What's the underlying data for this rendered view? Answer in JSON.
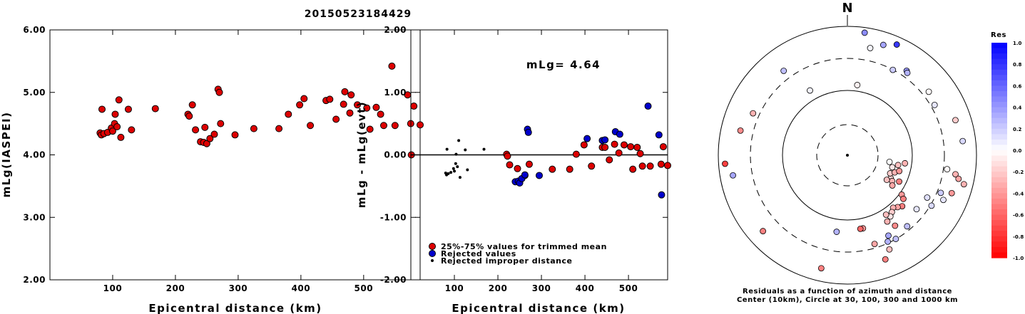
{
  "title": "20150523184429",
  "chart_data": [
    {
      "type": "scatter",
      "xlabel": "Epicentral distance (km)",
      "ylabel": "mLg(IASPEI)",
      "xlim": [
        0,
        590
      ],
      "ylim": [
        2.0,
        6.0
      ],
      "x_ticks": [
        "100",
        "200",
        "300",
        "400",
        "500"
      ],
      "x_tick_values": [
        100,
        200,
        300,
        400,
        500
      ],
      "y_ticks": [
        "2.00",
        "3.00",
        "4.00",
        "5.00",
        "6.00"
      ],
      "y_tick_values": [
        2.0,
        3.0,
        4.0,
        5.0,
        6.0
      ],
      "series": [
        {
          "color": "#dd0000",
          "points": [
            [
              80,
              4.35
            ],
            [
              82,
              4.32
            ],
            [
              83,
              4.73
            ],
            [
              86,
              4.34
            ],
            [
              92,
              4.36
            ],
            [
              98,
              4.43
            ],
            [
              100,
              4.38
            ],
            [
              103,
              4.5
            ],
            [
              104,
              4.65
            ],
            [
              107,
              4.45
            ],
            [
              110,
              4.88
            ],
            [
              113,
              4.28
            ],
            [
              125,
              4.73
            ],
            [
              130,
              4.4
            ],
            [
              168,
              4.74
            ],
            [
              220,
              4.65
            ],
            [
              222,
              4.62
            ],
            [
              227,
              4.8
            ],
            [
              232,
              4.4
            ],
            [
              240,
              4.21
            ],
            [
              245,
              4.2
            ],
            [
              247,
              4.44
            ],
            [
              250,
              4.18
            ],
            [
              255,
              4.26
            ],
            [
              262,
              4.33
            ],
            [
              268,
              5.05
            ],
            [
              270,
              5.0
            ],
            [
              272,
              4.5
            ],
            [
              295,
              4.32
            ],
            [
              325,
              4.42
            ],
            [
              365,
              4.42
            ],
            [
              380,
              4.65
            ],
            [
              398,
              4.8
            ],
            [
              405,
              4.9
            ],
            [
              415,
              4.47
            ],
            [
              440,
              4.87
            ],
            [
              446,
              4.89
            ],
            [
              456,
              4.57
            ],
            [
              468,
              4.81
            ],
            [
              470,
              5.01
            ],
            [
              478,
              4.67
            ],
            [
              480,
              4.96
            ],
            [
              490,
              4.8
            ],
            [
              505,
              4.75
            ],
            [
              510,
              4.41
            ],
            [
              520,
              4.76
            ],
            [
              527,
              4.65
            ],
            [
              532,
              4.47
            ],
            [
              545,
              5.42
            ],
            [
              550,
              4.47
            ],
            [
              570,
              4.96
            ],
            [
              575,
              4.5
            ],
            [
              576,
              4.0
            ],
            [
              580,
              4.78
            ],
            [
              590,
              4.48
            ]
          ]
        }
      ]
    },
    {
      "type": "scatter",
      "xlabel": "Epicentral distance (km)",
      "ylabel": "mLg - mLg(evt)",
      "xlim": [
        0,
        590
      ],
      "ylim": [
        -2.0,
        2.0
      ],
      "x_ticks": [
        "100",
        "200",
        "300",
        "400",
        "500"
      ],
      "x_tick_values": [
        100,
        200,
        300,
        400,
        500
      ],
      "y_ticks": [
        "-2.00",
        "-1.00",
        "0.00",
        "1.00",
        "2.00"
      ],
      "y_tick_values": [
        -2.0,
        -1.0,
        0.0,
        1.0,
        2.0
      ],
      "annotation": "mLg= 4.64",
      "reference_line": 0.0,
      "legend": [
        {
          "label": "25%-75% values for trimmed mean",
          "color": "#dd0000",
          "marker": "circle"
        },
        {
          "label": "Rejected values",
          "color": "#0000cc",
          "marker": "circle"
        },
        {
          "label": "Rejected improper distance",
          "color": "#000000",
          "marker": "dot"
        }
      ],
      "series": [
        {
          "name": "25%-75% values for trimmed mean",
          "color": "#dd0000",
          "points": [
            [
              220,
              0.01
            ],
            [
              222,
              -0.02
            ],
            [
              227,
              -0.16
            ],
            [
              245,
              -0.22
            ],
            [
              262,
              -0.33
            ],
            [
              272,
              -0.15
            ],
            [
              325,
              -0.23
            ],
            [
              365,
              -0.23
            ],
            [
              380,
              0.01
            ],
            [
              398,
              0.16
            ],
            [
              415,
              -0.18
            ],
            [
              440,
              0.12
            ],
            [
              446,
              0.12
            ],
            [
              456,
              -0.08
            ],
            [
              468,
              0.17
            ],
            [
              478,
              0.03
            ],
            [
              490,
              0.16
            ],
            [
              505,
              0.13
            ],
            [
              510,
              -0.23
            ],
            [
              520,
              0.12
            ],
            [
              527,
              0.02
            ],
            [
              532,
              -0.18
            ],
            [
              550,
              -0.18
            ],
            [
              575,
              -0.15
            ],
            [
              580,
              0.13
            ],
            [
              590,
              -0.17
            ]
          ]
        },
        {
          "name": "Rejected values",
          "color": "#0000cc",
          "points": [
            [
              240,
              -0.43
            ],
            [
              247,
              -0.42
            ],
            [
              250,
              -0.45
            ],
            [
              255,
              -0.38
            ],
            [
              262,
              -0.32
            ],
            [
              268,
              0.41
            ],
            [
              270,
              0.36
            ],
            [
              295,
              -0.33
            ],
            [
              405,
              0.26
            ],
            [
              440,
              0.23
            ],
            [
              446,
              0.24
            ],
            [
              470,
              0.37
            ],
            [
              480,
              0.33
            ],
            [
              545,
              0.78
            ],
            [
              570,
              0.32
            ],
            [
              576,
              -0.64
            ]
          ]
        },
        {
          "name": "Rejected improper distance",
          "color": "#000000",
          "points": [
            [
              80,
              -0.29
            ],
            [
              82,
              -0.32
            ],
            [
              83,
              0.09
            ],
            [
              86,
              -0.3
            ],
            [
              92,
              -0.28
            ],
            [
              98,
              -0.22
            ],
            [
              100,
              -0.26
            ],
            [
              103,
              -0.14
            ],
            [
              104,
              0.01
            ],
            [
              107,
              -0.19
            ],
            [
              110,
              0.23
            ],
            [
              113,
              -0.36
            ],
            [
              125,
              0.08
            ],
            [
              130,
              -0.24
            ],
            [
              168,
              0.09
            ]
          ]
        }
      ]
    },
    {
      "type": "polar_scatter",
      "north_label": "N",
      "caption_line1": "Residuals as a function of azimuth and distance",
      "caption_line2": "Center (10km), Circle at 30, 100, 300 and 1000 km",
      "colorbar": {
        "title": "Res",
        "ticks": [
          "1.0",
          "0.8",
          "0.6",
          "0.4",
          "0.2",
          "0.0",
          "-0.2",
          "-0.4",
          "-0.6",
          "-0.8",
          "-1.0"
        ],
        "tick_values": [
          1.0,
          0.8,
          0.6,
          0.4,
          0.2,
          0.0,
          -0.2,
          -0.4,
          -0.6,
          -0.8,
          -1.0
        ],
        "positive_color": "#0000ff",
        "negative_color": "#ff0000"
      },
      "stations": [
        {
          "az": 8,
          "d": 0.96,
          "res": 0.45
        },
        {
          "az": 18,
          "d": 0.9,
          "res": 0.35
        },
        {
          "az": 24,
          "d": 0.94,
          "res": 0.78
        },
        {
          "az": 12,
          "d": 0.85,
          "res": 0.03
        },
        {
          "az": 28,
          "d": 0.75,
          "res": 0.2
        },
        {
          "az": 35,
          "d": 0.8,
          "res": 0.4
        },
        {
          "az": 36,
          "d": 0.79,
          "res": 0.3
        },
        {
          "az": 8,
          "d": 0.55,
          "res": -0.05
        },
        {
          "az": 52,
          "d": 0.8,
          "res": -0.02
        },
        {
          "az": 60,
          "d": 0.78,
          "res": 0.1
        },
        {
          "az": 72,
          "d": 0.88,
          "res": -0.2
        },
        {
          "az": 83,
          "d": 0.9,
          "res": 0.15
        },
        {
          "az": 100,
          "d": 0.85,
          "res": -0.3
        },
        {
          "az": 102,
          "d": 0.88,
          "res": -0.35
        },
        {
          "az": 104,
          "d": 0.93,
          "res": -0.3
        },
        {
          "az": 98,
          "d": 0.78,
          "res": -0.02
        },
        {
          "az": 110,
          "d": 0.86,
          "res": -0.4
        },
        {
          "az": 112,
          "d": 0.78,
          "res": 0.2
        },
        {
          "az": 115,
          "d": 0.82,
          "res": 0.1
        },
        {
          "az": 118,
          "d": 0.7,
          "res": 0.12
        },
        {
          "az": 121,
          "d": 0.76,
          "res": 0.15
        },
        {
          "az": 128,
          "d": 0.68,
          "res": 0.1
        },
        {
          "az": 140,
          "d": 0.72,
          "res": 0.25
        },
        {
          "az": 133,
          "d": 0.58,
          "res": -0.5
        },
        {
          "az": 136,
          "d": 0.56,
          "res": -0.35
        },
        {
          "az": 139,
          "d": 0.54,
          "res": -0.3
        },
        {
          "az": 142,
          "d": 0.56,
          "res": -0.2
        },
        {
          "az": 145,
          "d": 0.58,
          "res": -0.1
        },
        {
          "az": 147,
          "d": 0.55,
          "res": -0.25
        },
        {
          "az": 149,
          "d": 0.6,
          "res": -0.3
        },
        {
          "az": 126,
          "d": 0.52,
          "res": -0.4
        },
        {
          "az": 128,
          "d": 0.55,
          "res": -0.5
        },
        {
          "az": 146,
          "d": 0.66,
          "res": -0.45
        },
        {
          "az": 150,
          "d": 0.75,
          "res": 0.25
        },
        {
          "az": 153,
          "d": 0.7,
          "res": 0.35
        },
        {
          "az": 155,
          "d": 0.74,
          "res": 0.3
        },
        {
          "az": 156,
          "d": 0.8,
          "res": -0.25
        },
        {
          "az": 160,
          "d": 0.86,
          "res": -0.5
        },
        {
          "az": 163,
          "d": 0.72,
          "res": -0.35
        },
        {
          "az": 168,
          "d": 0.58,
          "res": -0.4
        },
        {
          "az": 170,
          "d": 0.58,
          "res": -0.6
        },
        {
          "az": 188,
          "d": 0.6,
          "res": 0.3
        },
        {
          "az": 193,
          "d": 0.9,
          "res": -0.5
        },
        {
          "az": 228,
          "d": 0.88,
          "res": -0.5
        },
        {
          "az": 118,
          "d": 0.38,
          "res": -0.15
        },
        {
          "az": 120,
          "d": 0.4,
          "res": -0.3
        },
        {
          "az": 122,
          "d": 0.36,
          "res": -0.25
        },
        {
          "az": 124,
          "d": 0.42,
          "res": -0.35
        },
        {
          "az": 117,
          "d": 0.45,
          "res": -0.5
        },
        {
          "az": 113,
          "d": 0.36,
          "res": -0.2
        },
        {
          "az": 110,
          "d": 0.39,
          "res": -0.3
        },
        {
          "az": 107,
          "d": 0.42,
          "res": -0.4
        },
        {
          "az": 105,
          "d": 0.36,
          "res": -0.1
        },
        {
          "az": 101,
          "d": 0.4,
          "res": -0.25
        },
        {
          "az": 99,
          "d": 0.33,
          "res": 0.0
        },
        {
          "az": 98,
          "d": 0.45,
          "res": -0.3
        },
        {
          "az": 266,
          "d": 0.95,
          "res": -0.75
        },
        {
          "az": 260,
          "d": 0.9,
          "res": 0.35
        },
        {
          "az": 283,
          "d": 0.85,
          "res": -0.45
        },
        {
          "az": 294,
          "d": 0.8,
          "res": -0.3
        },
        {
          "az": 323,
          "d": 0.82,
          "res": 0.25
        },
        {
          "az": 330,
          "d": 0.58,
          "res": 0.05
        }
      ]
    }
  ]
}
